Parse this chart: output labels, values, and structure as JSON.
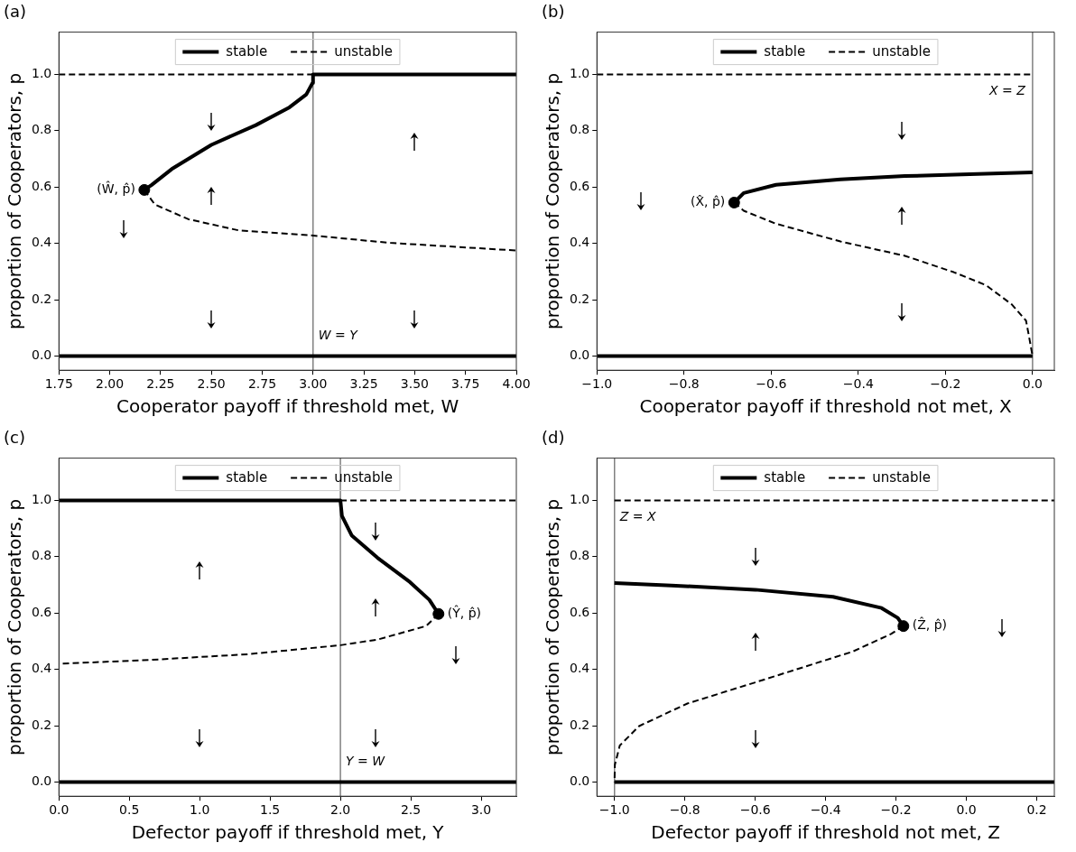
{
  "chart_data": [
    {
      "type": "line",
      "title": "(a)",
      "xlabel": "Cooperator payoff if threshold met, W",
      "ylabel": "proportion of Cooperators, p",
      "xlim": [
        1.75,
        4.0
      ],
      "ylim": [
        -0.05,
        1.15
      ],
      "xticks": [
        {
          "value": 1.75,
          "label": "1.75"
        },
        {
          "value": 2.0,
          "label": "2.00"
        },
        {
          "value": 2.25,
          "label": "2.25"
        },
        {
          "value": 2.5,
          "label": "2.50"
        },
        {
          "value": 2.75,
          "label": "2.75"
        },
        {
          "value": 3.0,
          "label": "3.00"
        },
        {
          "value": 3.25,
          "label": "3.25"
        },
        {
          "value": 3.5,
          "label": "3.50"
        },
        {
          "value": 3.75,
          "label": "3.75"
        },
        {
          "value": 4.0,
          "label": "4.00"
        }
      ],
      "yticks": [
        {
          "value": 0,
          "label": "0.0"
        },
        {
          "value": 0.2,
          "label": "0.2"
        },
        {
          "value": 0.4,
          "label": "0.4"
        },
        {
          "value": 0.6,
          "label": "0.6"
        },
        {
          "value": 0.8,
          "label": "0.8"
        },
        {
          "value": 1.0,
          "label": "1.0"
        }
      ],
      "legend": "top",
      "grid": false,
      "series": [
        {
          "name": "stable",
          "color": "#000000",
          "line_style": "solid",
          "x": [
            2.17,
            2.205,
            2.305,
            2.5,
            2.719,
            2.884,
            2.967,
            2.997,
            3.0,
            4.0,
            null,
            1.75,
            4.0
          ],
          "values": [
            0.59,
            0.607,
            0.664,
            0.75,
            0.82,
            0.883,
            0.929,
            0.969,
            1.0,
            1.0,
            null,
            0,
            0
          ]
        },
        {
          "name": "unstable",
          "color": "#000000",
          "line_style": "dashed",
          "x": [
            2.17,
            2.222,
            2.387,
            2.636,
            3.0,
            3.38,
            4.0,
            null,
            1.75,
            3.0
          ],
          "values": [
            0.59,
            0.538,
            0.486,
            0.446,
            0.428,
            0.402,
            0.375,
            null,
            1.0,
            1.0
          ]
        },
        {
          "type": "scatter",
          "color": "#000000",
          "marker": "circle",
          "x": [
            2.17
          ],
          "values": [
            0.59
          ]
        }
      ],
      "ref_lines": [
        {
          "axis": "x",
          "value": 3.0,
          "label": "W = Y",
          "color": "#808080"
        }
      ],
      "annotations": [
        {
          "text": "(Ŵ, p̂)",
          "x": 2.17,
          "y": 0.59
        }
      ]
    },
    {
      "type": "line",
      "title": "(b)",
      "xlabel": "Cooperator payoff if threshold not met, X",
      "ylabel": "proportion of Cooperators, p",
      "xlim": [
        -1.0,
        0.05
      ],
      "ylim": [
        -0.05,
        1.15
      ],
      "xticks": [
        {
          "value": -1.0,
          "label": "−1.0"
        },
        {
          "value": -0.8,
          "label": "−0.8"
        },
        {
          "value": -0.6,
          "label": "−0.6"
        },
        {
          "value": -0.4,
          "label": "−0.4"
        },
        {
          "value": -0.2,
          "label": "−0.2"
        },
        {
          "value": 0,
          "label": "0.0"
        }
      ],
      "yticks": [
        {
          "value": 0,
          "label": "0.0"
        },
        {
          "value": 0.2,
          "label": "0.2"
        },
        {
          "value": 0.4,
          "label": "0.4"
        },
        {
          "value": 0.6,
          "label": "0.6"
        },
        {
          "value": 0.8,
          "label": "0.8"
        },
        {
          "value": 1.0,
          "label": "1.0"
        }
      ],
      "legend": "top",
      "grid": false,
      "series": [
        {
          "name": "stable",
          "color": "#000000",
          "line_style": "solid",
          "x": [
            -0.685,
            -0.663,
            -0.589,
            -0.441,
            -0.293,
            -0.144,
            0.0,
            null,
            -1.0,
            0.0
          ],
          "values": [
            0.545,
            0.579,
            0.608,
            0.627,
            0.639,
            0.646,
            0.652,
            null,
            0,
            0
          ]
        },
        {
          "name": "unstable",
          "color": "#000000",
          "line_style": "dashed",
          "x": [
            -0.685,
            -0.663,
            -0.589,
            -0.441,
            -0.293,
            -0.181,
            -0.107,
            -0.048,
            -0.015,
            -0.008,
            0.0,
            null,
            -1.0,
            0.0
          ],
          "values": [
            0.545,
            0.516,
            0.47,
            0.407,
            0.356,
            0.298,
            0.252,
            0.184,
            0.126,
            0.069,
            0,
            null,
            1.0,
            1.0
          ]
        },
        {
          "type": "scatter",
          "color": "#000000",
          "marker": "circle",
          "x": [
            -0.685
          ],
          "values": [
            0.545
          ]
        }
      ],
      "ref_lines": [
        {
          "axis": "x",
          "value": 0.0,
          "label": "X = Z",
          "color": "#808080"
        }
      ],
      "annotations": [
        {
          "text": "(X̂, p̂)",
          "x": -0.685,
          "y": 0.545
        }
      ]
    },
    {
      "type": "line",
      "title": "(c)",
      "xlabel": "Defector payoff if threshold met, Y",
      "ylabel": "proportion of Cooperators, p",
      "xlim": [
        0,
        3.25
      ],
      "ylim": [
        -0.05,
        1.15
      ],
      "xticks": [
        {
          "value": 0,
          "label": "0.0"
        },
        {
          "value": 0.5,
          "label": "0.5"
        },
        {
          "value": 1.0,
          "label": "1.0"
        },
        {
          "value": 1.5,
          "label": "1.5"
        },
        {
          "value": 2.0,
          "label": "2.0"
        },
        {
          "value": 2.5,
          "label": "2.5"
        },
        {
          "value": 3.0,
          "label": "3.0"
        }
      ],
      "yticks": [
        {
          "value": 0,
          "label": "0.0"
        },
        {
          "value": 0.2,
          "label": "0.2"
        },
        {
          "value": 0.4,
          "label": "0.4"
        },
        {
          "value": 0.6,
          "label": "0.6"
        },
        {
          "value": 0.8,
          "label": "0.8"
        },
        {
          "value": 1.0,
          "label": "1.0"
        }
      ],
      "legend": "top",
      "grid": false,
      "series": [
        {
          "name": "stable",
          "color": "#000000",
          "line_style": "solid",
          "x": [
            0,
            2.0,
            2.011,
            2.08,
            2.264,
            2.494,
            2.632,
            2.697,
            null,
            0,
            3.25
          ],
          "values": [
            1.0,
            1.0,
            0.945,
            0.876,
            0.796,
            0.71,
            0.647,
            0.597,
            null,
            0,
            0
          ]
        },
        {
          "name": "unstable",
          "color": "#000000",
          "line_style": "dashed",
          "x": [
            2.697,
            2.609,
            2.264,
            2.0,
            1.345,
            0.655,
            0,
            null,
            2.0,
            3.25
          ],
          "values": [
            0.597,
            0.554,
            0.506,
            0.486,
            0.454,
            0.434,
            0.42,
            null,
            1.0,
            1.0
          ]
        },
        {
          "type": "scatter",
          "color": "#000000",
          "marker": "circle",
          "x": [
            2.697
          ],
          "values": [
            0.597
          ]
        }
      ],
      "ref_lines": [
        {
          "axis": "x",
          "value": 2.0,
          "label": "Y = W",
          "color": "#808080"
        }
      ],
      "annotations": [
        {
          "text": "(Ŷ, p̂)",
          "x": 2.697,
          "y": 0.597
        }
      ]
    },
    {
      "type": "line",
      "title": "(d)",
      "xlabel": "Defector payoff if threshold not met, Z",
      "ylabel": "proportion of Cooperators, p",
      "xlim": [
        -1.05,
        0.25
      ],
      "ylim": [
        -0.05,
        1.15
      ],
      "xticks": [
        {
          "value": -1.0,
          "label": "−1.0"
        },
        {
          "value": -0.8,
          "label": "−0.8"
        },
        {
          "value": -0.6,
          "label": "−0.6"
        },
        {
          "value": -0.4,
          "label": "−0.4"
        },
        {
          "value": -0.2,
          "label": "−0.2"
        },
        {
          "value": 0,
          "label": "0.0"
        },
        {
          "value": 0.2,
          "label": "0.2"
        }
      ],
      "yticks": [
        {
          "value": 0,
          "label": "0.0"
        },
        {
          "value": 0.2,
          "label": "0.2"
        },
        {
          "value": 0.4,
          "label": "0.4"
        },
        {
          "value": 0.6,
          "label": "0.6"
        },
        {
          "value": 0.8,
          "label": "0.8"
        },
        {
          "value": 1.0,
          "label": "1.0"
        }
      ],
      "legend": "top",
      "grid": false,
      "series": [
        {
          "name": "stable",
          "color": "#000000",
          "line_style": "solid",
          "x": [
            -1.0,
            -0.838,
            -0.6,
            -0.379,
            -0.241,
            -0.195,
            -0.179,
            null,
            -1.0,
            0.25
          ],
          "values": [
            0.707,
            0.698,
            0.683,
            0.658,
            0.618,
            0.583,
            0.554,
            null,
            0,
            0
          ]
        },
        {
          "name": "unstable",
          "color": "#000000",
          "line_style": "dashed",
          "x": [
            -0.179,
            -0.214,
            -0.324,
            -0.6,
            -0.793,
            -0.93,
            -0.985,
            -0.999,
            -1.0,
            null,
            -1.0,
            0.25
          ],
          "values": [
            0.554,
            0.526,
            0.463,
            0.354,
            0.279,
            0.199,
            0.13,
            0.061,
            0,
            null,
            1.0,
            1.0
          ]
        },
        {
          "type": "scatter",
          "color": "#000000",
          "marker": "circle",
          "x": [
            -0.179
          ],
          "values": [
            0.554
          ]
        }
      ],
      "ref_lines": [
        {
          "axis": "x",
          "value": -1.0,
          "label": "Z = X",
          "color": "#808080"
        }
      ],
      "annotations": [
        {
          "text": "(Ẑ, p̂)",
          "x": -0.179,
          "y": 0.554
        }
      ]
    }
  ]
}
